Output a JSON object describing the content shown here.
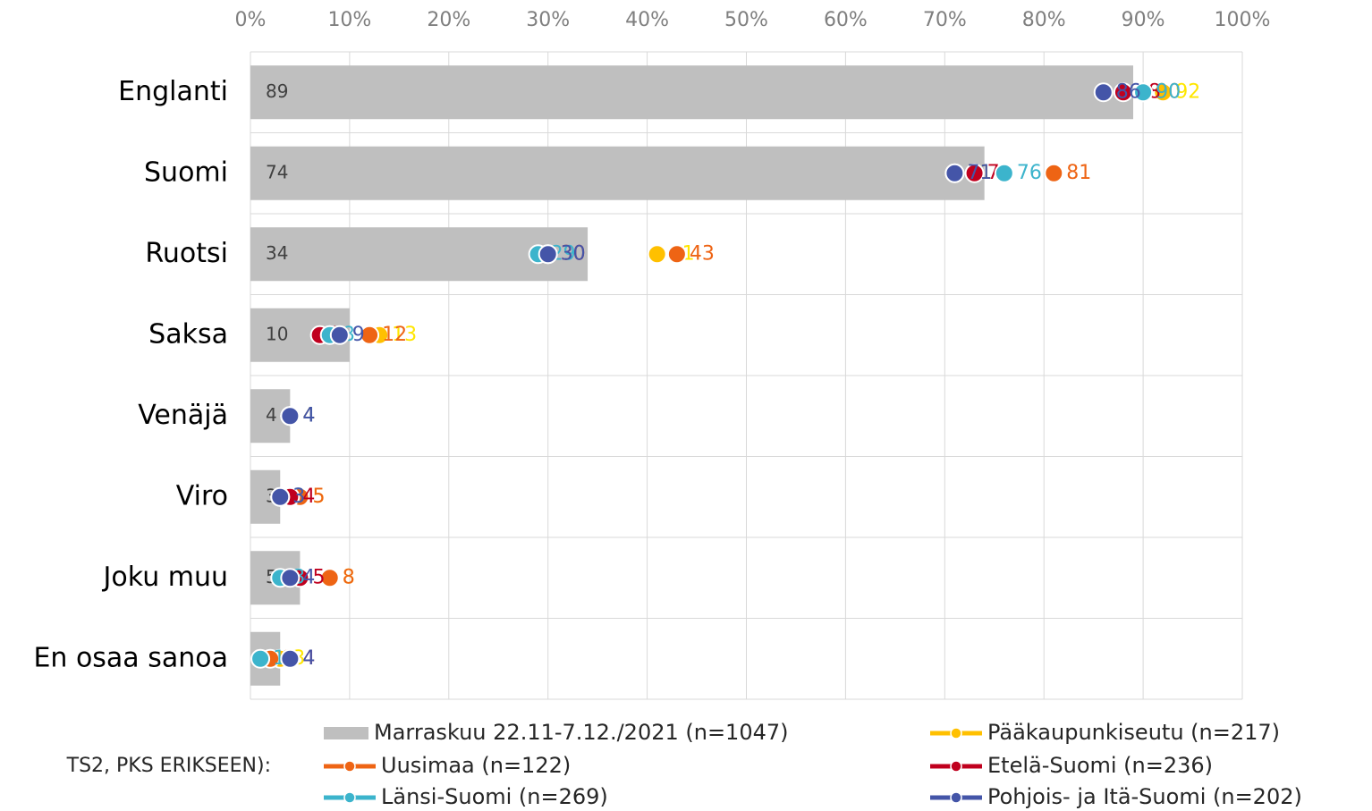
{
  "chart_data": {
    "type": "combo",
    "note": "TS2, PKS ERIKSEEN):",
    "categories": [
      "Englanti",
      "Suomi",
      "Ruotsi",
      "Saksa",
      "Venäjä",
      "Viro",
      "Joku muu",
      "En osaa sanoa"
    ],
    "xlim": [
      0,
      100
    ],
    "xticks": [
      {
        "value": 0,
        "label": "0%"
      },
      {
        "value": 10,
        "label": "10%"
      },
      {
        "value": 20,
        "label": "20%"
      },
      {
        "value": 30,
        "label": "30%"
      },
      {
        "value": 40,
        "label": "40%"
      },
      {
        "value": 50,
        "label": "50%"
      },
      {
        "value": 60,
        "label": "60%"
      },
      {
        "value": 70,
        "label": "70%"
      },
      {
        "value": 80,
        "label": "80%"
      },
      {
        "value": 90,
        "label": "90%"
      },
      {
        "value": 100,
        "label": "100%"
      }
    ],
    "grid": true,
    "legend": "bottom",
    "series": [
      {
        "name": "Marraskuu 22.11-7.12./2021 (n=1047)",
        "type": "bar",
        "color": "#bfbfbf",
        "label_color": "#404040",
        "values": [
          89,
          74,
          34,
          10,
          4,
          3,
          5,
          3
        ]
      },
      {
        "name": "Pääkaupunkiseutu (n=217)",
        "type": "line",
        "color": "#ffc000",
        "label_color": "#ffe600",
        "values": [
          92,
          71,
          41,
          13,
          4,
          5,
          8,
          3
        ]
      },
      {
        "name": "Uusimaa (n=122)",
        "type": "line",
        "color": "#ee6414",
        "label_color": "#ee6414",
        "values": [
          90,
          81,
          43,
          12,
          4,
          5,
          8,
          2
        ]
      },
      {
        "name": "Etelä-Suomi (n=236)",
        "type": "line",
        "color": "#c0001e",
        "label_color": "#c0001e",
        "values": [
          88,
          73,
          30,
          7,
          4,
          4,
          5,
          4
        ]
      },
      {
        "name": "Länsi-Suomi (n=269)",
        "type": "line",
        "color": "#3cb4cc",
        "label_color": "#3cb4cc",
        "values": [
          90,
          76,
          29,
          8,
          4,
          3,
          3,
          1
        ]
      },
      {
        "name": "Pohjois- ja Itä-Suomi (n=202)",
        "type": "line",
        "color": "#4455a8",
        "label_color": "#4455a8",
        "values": [
          86,
          71,
          30,
          9,
          4,
          3,
          4,
          4
        ]
      }
    ]
  }
}
